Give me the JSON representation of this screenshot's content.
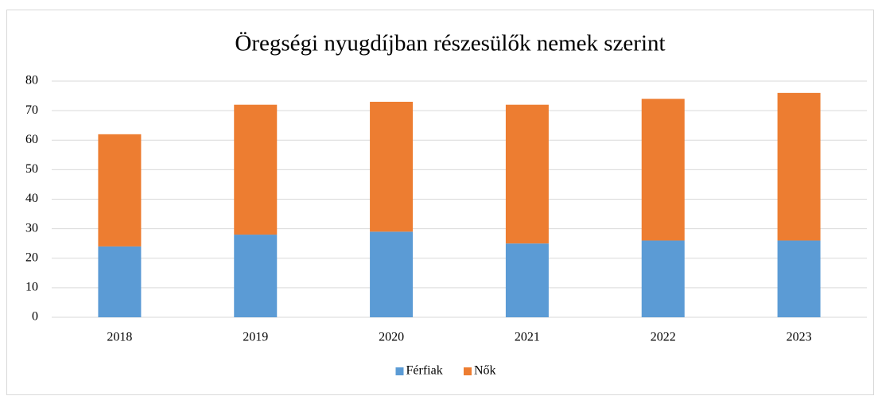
{
  "chart_data": {
    "type": "bar",
    "stacked": true,
    "title": "Öregségi nyugdíjban részesülők nemek szerint",
    "categories": [
      "2018",
      "2019",
      "2020",
      "2021",
      "2022",
      "2023"
    ],
    "series": [
      {
        "name": "Férfiak",
        "color": "#5b9bd5",
        "values": [
          24,
          28,
          29,
          25,
          26,
          26
        ]
      },
      {
        "name": "Nők",
        "color": "#ed7d31",
        "values": [
          38,
          44,
          44,
          47,
          48,
          50
        ]
      }
    ],
    "ylim": [
      0,
      80
    ],
    "yticks": [
      0,
      10,
      20,
      30,
      40,
      50,
      60,
      70,
      80
    ],
    "grid": true,
    "legend": "bottom"
  }
}
